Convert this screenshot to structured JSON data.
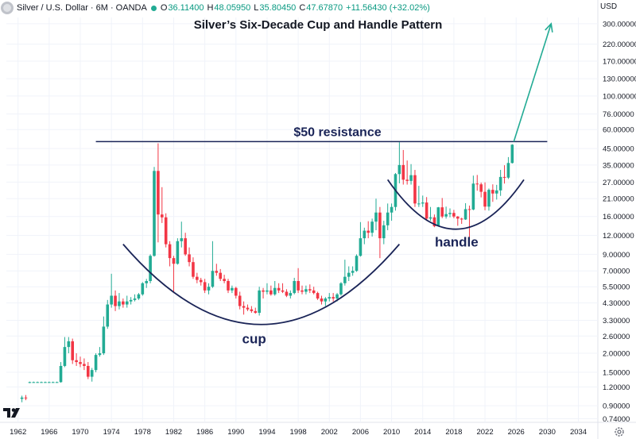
{
  "header": {
    "symbol": "Silver / U.S. Dollar · 6M · OANDA",
    "open_label": "O",
    "open": "36.11400",
    "high_label": "H",
    "high": "48.05950",
    "low_label": "L",
    "low": "35.80450",
    "close_label": "C",
    "close": "47.67870",
    "change": "+11.56430 (+32.02%)",
    "up_color": "#22ab94"
  },
  "currency": "USD",
  "icons": {
    "logo": "tradingview-logo-icon",
    "settings": "gear-icon",
    "status": "green-dot-icon"
  },
  "chart_data": {
    "type": "candlestick",
    "title": "Silver’s Six-Decade Cup and Handle Pattern",
    "scale": "log",
    "x_ticks": [
      "1962",
      "1966",
      "1970",
      "1974",
      "1978",
      "1982",
      "1986",
      "1990",
      "1994",
      "1998",
      "2002",
      "2006",
      "2010",
      "2014",
      "2018",
      "2022",
      "2026",
      "2030",
      "2034"
    ],
    "y_ticks": [
      "300.00000",
      "220.00000",
      "170.00000",
      "130.00000",
      "100.00000",
      "76.00000",
      "60.00000",
      "45.00000",
      "35.00000",
      "27.00000",
      "21.00000",
      "16.00000",
      "12.00000",
      "9.00000",
      "7.00000",
      "5.50000",
      "4.30000",
      "3.30000",
      "2.60000",
      "2.00000",
      "1.50000",
      "1.20000",
      "0.90000",
      "0.74000"
    ],
    "ylim": [
      0.74,
      300
    ],
    "up_color": "#22ab94",
    "down_color": "#f23645",
    "candles": [
      {
        "t": "1962.5",
        "o": 1.0,
        "h": 1.05,
        "l": 0.95,
        "c": 1.02
      },
      {
        "t": "1963.0",
        "o": 1.02,
        "h": 1.06,
        "l": 0.98,
        "c": 1.01
      },
      {
        "t": "1963.5",
        "o": 1.28,
        "h": 1.3,
        "l": 1.27,
        "c": 1.29
      },
      {
        "t": "1964.0",
        "o": 1.29,
        "h": 1.3,
        "l": 1.28,
        "c": 1.29
      },
      {
        "t": "1964.5",
        "o": 1.29,
        "h": 1.3,
        "l": 1.28,
        "c": 1.29
      },
      {
        "t": "1965.0",
        "o": 1.29,
        "h": 1.3,
        "l": 1.28,
        "c": 1.29
      },
      {
        "t": "1965.5",
        "o": 1.29,
        "h": 1.3,
        "l": 1.28,
        "c": 1.29
      },
      {
        "t": "1966.0",
        "o": 1.29,
        "h": 1.3,
        "l": 1.28,
        "c": 1.29
      },
      {
        "t": "1966.5",
        "o": 1.29,
        "h": 1.3,
        "l": 1.28,
        "c": 1.29
      },
      {
        "t": "1967.0",
        "o": 1.29,
        "h": 1.3,
        "l": 1.28,
        "c": 1.29
      },
      {
        "t": "1967.5",
        "o": 1.29,
        "h": 1.75,
        "l": 1.28,
        "c": 1.65
      },
      {
        "t": "1968.0",
        "o": 1.65,
        "h": 2.56,
        "l": 1.62,
        "c": 2.2
      },
      {
        "t": "1968.5",
        "o": 2.2,
        "h": 2.56,
        "l": 2.0,
        "c": 2.4
      },
      {
        "t": "1969.0",
        "o": 2.4,
        "h": 2.5,
        "l": 1.7,
        "c": 1.8
      },
      {
        "t": "1969.5",
        "o": 1.8,
        "h": 2.0,
        "l": 1.65,
        "c": 1.75
      },
      {
        "t": "1970.0",
        "o": 1.75,
        "h": 1.9,
        "l": 1.62,
        "c": 1.7
      },
      {
        "t": "1970.5",
        "o": 1.7,
        "h": 1.85,
        "l": 1.55,
        "c": 1.65
      },
      {
        "t": "1971.0",
        "o": 1.65,
        "h": 1.75,
        "l": 1.35,
        "c": 1.4
      },
      {
        "t": "1971.5",
        "o": 1.4,
        "h": 1.6,
        "l": 1.3,
        "c": 1.55
      },
      {
        "t": "1972.0",
        "o": 1.55,
        "h": 2.0,
        "l": 1.5,
        "c": 1.95
      },
      {
        "t": "1972.5",
        "o": 1.95,
        "h": 2.2,
        "l": 1.9,
        "c": 2.0
      },
      {
        "t": "1973.0",
        "o": 2.0,
        "h": 3.5,
        "l": 1.95,
        "c": 3.0
      },
      {
        "t": "1973.5",
        "o": 3.0,
        "h": 4.5,
        "l": 2.9,
        "c": 4.2
      },
      {
        "t": "1974.0",
        "o": 4.2,
        "h": 6.7,
        "l": 4.0,
        "c": 4.8
      },
      {
        "t": "1974.5",
        "o": 4.8,
        "h": 5.2,
        "l": 3.8,
        "c": 4.1
      },
      {
        "t": "1975.0",
        "o": 4.1,
        "h": 5.0,
        "l": 3.9,
        "c": 4.4
      },
      {
        "t": "1975.5",
        "o": 4.4,
        "h": 4.6,
        "l": 4.0,
        "c": 4.2
      },
      {
        "t": "1976.0",
        "o": 4.2,
        "h": 4.8,
        "l": 4.0,
        "c": 4.4
      },
      {
        "t": "1976.5",
        "o": 4.4,
        "h": 4.7,
        "l": 4.2,
        "c": 4.5
      },
      {
        "t": "1977.0",
        "o": 4.5,
        "h": 4.9,
        "l": 4.4,
        "c": 4.6
      },
      {
        "t": "1977.5",
        "o": 4.6,
        "h": 5.0,
        "l": 4.5,
        "c": 4.9
      },
      {
        "t": "1978.0",
        "o": 4.9,
        "h": 5.9,
        "l": 4.8,
        "c": 5.8
      },
      {
        "t": "1978.5",
        "o": 5.8,
        "h": 6.2,
        "l": 5.4,
        "c": 6.0
      },
      {
        "t": "1979.0",
        "o": 6.0,
        "h": 9.0,
        "l": 5.8,
        "c": 8.8
      },
      {
        "t": "1979.5",
        "o": 8.8,
        "h": 34.0,
        "l": 8.7,
        "c": 32.0
      },
      {
        "t": "1980.0",
        "o": 32.0,
        "h": 48.7,
        "l": 10.8,
        "c": 16.5
      },
      {
        "t": "1980.5",
        "o": 16.5,
        "h": 25.0,
        "l": 14.5,
        "c": 15.8
      },
      {
        "t": "1981.0",
        "o": 15.8,
        "h": 16.8,
        "l": 10.0,
        "c": 10.5
      },
      {
        "t": "1981.5",
        "o": 10.5,
        "h": 11.0,
        "l": 7.5,
        "c": 8.5
      },
      {
        "t": "1982.0",
        "o": 8.5,
        "h": 8.8,
        "l": 5.0,
        "c": 7.8
      },
      {
        "t": "1982.5",
        "o": 7.8,
        "h": 11.5,
        "l": 7.7,
        "c": 11.0
      },
      {
        "t": "1983.0",
        "o": 11.0,
        "h": 14.8,
        "l": 10.0,
        "c": 11.5
      },
      {
        "t": "1983.5",
        "o": 11.5,
        "h": 12.5,
        "l": 8.8,
        "c": 9.0
      },
      {
        "t": "1984.0",
        "o": 9.0,
        "h": 10.0,
        "l": 7.5,
        "c": 8.0
      },
      {
        "t": "1984.5",
        "o": 8.0,
        "h": 8.6,
        "l": 6.2,
        "c": 6.4
      },
      {
        "t": "1985.0",
        "o": 6.4,
        "h": 6.8,
        "l": 5.8,
        "c": 6.1
      },
      {
        "t": "1985.5",
        "o": 6.1,
        "h": 6.3,
        "l": 5.6,
        "c": 5.9
      },
      {
        "t": "1986.0",
        "o": 5.9,
        "h": 6.2,
        "l": 5.0,
        "c": 5.2
      },
      {
        "t": "1986.5",
        "o": 5.2,
        "h": 5.8,
        "l": 4.9,
        "c": 5.5
      },
      {
        "t": "1987.0",
        "o": 5.5,
        "h": 11.0,
        "l": 5.4,
        "c": 7.0
      },
      {
        "t": "1987.5",
        "o": 7.0,
        "h": 7.8,
        "l": 6.5,
        "c": 6.8
      },
      {
        "t": "1988.0",
        "o": 6.8,
        "h": 7.2,
        "l": 6.0,
        "c": 6.2
      },
      {
        "t": "1988.5",
        "o": 6.2,
        "h": 6.6,
        "l": 5.8,
        "c": 6.0
      },
      {
        "t": "1989.0",
        "o": 6.0,
        "h": 6.2,
        "l": 5.0,
        "c": 5.2
      },
      {
        "t": "1989.5",
        "o": 5.2,
        "h": 5.6,
        "l": 5.0,
        "c": 5.4
      },
      {
        "t": "1990.0",
        "o": 5.4,
        "h": 5.5,
        "l": 4.6,
        "c": 4.8
      },
      {
        "t": "1990.5",
        "o": 4.8,
        "h": 5.1,
        "l": 3.9,
        "c": 4.1
      },
      {
        "t": "1991.0",
        "o": 4.1,
        "h": 4.4,
        "l": 3.6,
        "c": 4.0
      },
      {
        "t": "1991.5",
        "o": 4.0,
        "h": 4.2,
        "l": 3.8,
        "c": 3.9
      },
      {
        "t": "1992.0",
        "o": 3.9,
        "h": 4.1,
        "l": 3.7,
        "c": 3.8
      },
      {
        "t": "1992.5",
        "o": 3.8,
        "h": 4.0,
        "l": 3.65,
        "c": 3.7
      },
      {
        "t": "1993.0",
        "o": 3.7,
        "h": 5.5,
        "l": 3.55,
        "c": 5.2
      },
      {
        "t": "1993.5",
        "o": 5.2,
        "h": 5.4,
        "l": 4.6,
        "c": 5.1
      },
      {
        "t": "1994.0",
        "o": 5.1,
        "h": 5.8,
        "l": 4.9,
        "c": 5.2
      },
      {
        "t": "1994.5",
        "o": 5.2,
        "h": 5.6,
        "l": 4.8,
        "c": 4.9
      },
      {
        "t": "1995.0",
        "o": 4.9,
        "h": 6.0,
        "l": 4.8,
        "c": 5.4
      },
      {
        "t": "1995.5",
        "o": 5.4,
        "h": 5.8,
        "l": 5.0,
        "c": 5.2
      },
      {
        "t": "1996.0",
        "o": 5.2,
        "h": 5.8,
        "l": 5.0,
        "c": 5.1
      },
      {
        "t": "1996.5",
        "o": 5.1,
        "h": 5.3,
        "l": 4.7,
        "c": 4.8
      },
      {
        "t": "1997.0",
        "o": 4.8,
        "h": 5.2,
        "l": 4.6,
        "c": 5.0
      },
      {
        "t": "1997.5",
        "o": 5.0,
        "h": 6.3,
        "l": 4.9,
        "c": 6.0
      },
      {
        "t": "1998.0",
        "o": 6.0,
        "h": 7.3,
        "l": 5.0,
        "c": 5.2
      },
      {
        "t": "1998.5",
        "o": 5.2,
        "h": 5.6,
        "l": 4.9,
        "c": 5.1
      },
      {
        "t": "1999.0",
        "o": 5.1,
        "h": 5.6,
        "l": 4.9,
        "c": 5.3
      },
      {
        "t": "1999.5",
        "o": 5.3,
        "h": 5.7,
        "l": 5.0,
        "c": 5.2
      },
      {
        "t": "2000.0",
        "o": 5.2,
        "h": 5.5,
        "l": 4.9,
        "c": 5.0
      },
      {
        "t": "2000.5",
        "o": 5.0,
        "h": 5.1,
        "l": 4.5,
        "c": 4.6
      },
      {
        "t": "2001.0",
        "o": 4.6,
        "h": 4.8,
        "l": 4.2,
        "c": 4.4
      },
      {
        "t": "2001.5",
        "o": 4.4,
        "h": 4.7,
        "l": 4.1,
        "c": 4.6
      },
      {
        "t": "2002.0",
        "o": 4.6,
        "h": 5.0,
        "l": 4.4,
        "c": 4.7
      },
      {
        "t": "2002.5",
        "o": 4.7,
        "h": 5.0,
        "l": 4.4,
        "c": 4.6
      },
      {
        "t": "2003.0",
        "o": 4.6,
        "h": 5.0,
        "l": 4.4,
        "c": 4.9
      },
      {
        "t": "2003.5",
        "o": 4.9,
        "h": 5.9,
        "l": 4.8,
        "c": 5.8
      },
      {
        "t": "2004.0",
        "o": 5.8,
        "h": 8.3,
        "l": 5.6,
        "c": 6.4
      },
      {
        "t": "2004.5",
        "o": 6.4,
        "h": 7.5,
        "l": 6.0,
        "c": 6.8
      },
      {
        "t": "2005.0",
        "o": 6.8,
        "h": 7.5,
        "l": 6.5,
        "c": 7.0
      },
      {
        "t": "2005.5",
        "o": 7.0,
        "h": 9.0,
        "l": 6.9,
        "c": 8.8
      },
      {
        "t": "2006.0",
        "o": 8.8,
        "h": 14.7,
        "l": 8.7,
        "c": 11.5
      },
      {
        "t": "2006.5",
        "o": 11.5,
        "h": 13.5,
        "l": 10.5,
        "c": 12.9
      },
      {
        "t": "2007.0",
        "o": 12.9,
        "h": 14.9,
        "l": 11.5,
        "c": 12.5
      },
      {
        "t": "2007.5",
        "o": 12.5,
        "h": 15.5,
        "l": 11.8,
        "c": 14.8
      },
      {
        "t": "2008.0",
        "o": 14.8,
        "h": 21.0,
        "l": 13.0,
        "c": 17.0
      },
      {
        "t": "2008.5",
        "o": 17.0,
        "h": 18.5,
        "l": 8.5,
        "c": 11.5
      },
      {
        "t": "2009.0",
        "o": 11.5,
        "h": 15.0,
        "l": 10.5,
        "c": 14.0
      },
      {
        "t": "2009.5",
        "o": 14.0,
        "h": 19.5,
        "l": 13.0,
        "c": 17.0
      },
      {
        "t": "2010.0",
        "o": 17.0,
        "h": 19.5,
        "l": 15.0,
        "c": 18.5
      },
      {
        "t": "2010.5",
        "o": 18.5,
        "h": 31.0,
        "l": 17.5,
        "c": 30.5
      },
      {
        "t": "2011.0",
        "o": 30.5,
        "h": 49.5,
        "l": 26.5,
        "c": 35.0
      },
      {
        "t": "2011.5",
        "o": 35.0,
        "h": 44.0,
        "l": 26.0,
        "c": 28.0
      },
      {
        "t": "2012.0",
        "o": 28.0,
        "h": 37.5,
        "l": 26.0,
        "c": 27.5
      },
      {
        "t": "2012.5",
        "o": 27.5,
        "h": 35.5,
        "l": 26.0,
        "c": 30.0
      },
      {
        "t": "2013.0",
        "o": 30.0,
        "h": 32.5,
        "l": 18.5,
        "c": 19.5
      },
      {
        "t": "2013.5",
        "o": 19.5,
        "h": 25.5,
        "l": 18.5,
        "c": 19.5
      },
      {
        "t": "2014.0",
        "o": 19.5,
        "h": 22.0,
        "l": 18.5,
        "c": 19.8
      },
      {
        "t": "2014.5",
        "o": 19.8,
        "h": 21.5,
        "l": 15.0,
        "c": 15.5
      },
      {
        "t": "2015.0",
        "o": 15.5,
        "h": 18.5,
        "l": 15.0,
        "c": 15.8
      },
      {
        "t": "2015.5",
        "o": 15.8,
        "h": 16.5,
        "l": 13.6,
        "c": 13.8
      },
      {
        "t": "2016.0",
        "o": 13.8,
        "h": 18.5,
        "l": 13.7,
        "c": 18.4
      },
      {
        "t": "2016.5",
        "o": 18.4,
        "h": 21.2,
        "l": 15.6,
        "c": 16.0
      },
      {
        "t": "2017.0",
        "o": 16.0,
        "h": 18.6,
        "l": 15.5,
        "c": 16.6
      },
      {
        "t": "2017.5",
        "o": 16.6,
        "h": 18.1,
        "l": 15.8,
        "c": 16.9
      },
      {
        "t": "2018.0",
        "o": 16.9,
        "h": 17.7,
        "l": 15.6,
        "c": 16.0
      },
      {
        "t": "2018.5",
        "o": 16.0,
        "h": 16.1,
        "l": 13.9,
        "c": 15.5
      },
      {
        "t": "2019.0",
        "o": 15.5,
        "h": 15.7,
        "l": 14.3,
        "c": 15.3
      },
      {
        "t": "2019.5",
        "o": 15.3,
        "h": 19.6,
        "l": 15.2,
        "c": 17.9
      },
      {
        "t": "2020.0",
        "o": 17.9,
        "h": 18.9,
        "l": 11.6,
        "c": 17.8
      },
      {
        "t": "2020.5",
        "o": 17.8,
        "h": 29.8,
        "l": 17.6,
        "c": 26.4
      },
      {
        "t": "2021.0",
        "o": 26.4,
        "h": 30.1,
        "l": 23.7,
        "c": 26.1
      },
      {
        "t": "2021.5",
        "o": 26.1,
        "h": 26.8,
        "l": 21.4,
        "c": 23.3
      },
      {
        "t": "2022.0",
        "o": 23.3,
        "h": 26.9,
        "l": 17.6,
        "c": 18.6
      },
      {
        "t": "2022.5",
        "o": 18.6,
        "h": 24.5,
        "l": 17.5,
        "c": 24.0
      },
      {
        "t": "2023.0",
        "o": 24.0,
        "h": 26.1,
        "l": 20.0,
        "c": 22.7
      },
      {
        "t": "2023.5",
        "o": 22.7,
        "h": 25.9,
        "l": 20.7,
        "c": 23.8
      },
      {
        "t": "2024.0",
        "o": 23.8,
        "h": 32.5,
        "l": 21.9,
        "c": 29.2
      },
      {
        "t": "2024.5",
        "o": 29.2,
        "h": 34.9,
        "l": 26.4,
        "c": 28.9
      },
      {
        "t": "2025.0",
        "o": 28.9,
        "h": 39.5,
        "l": 28.3,
        "c": 36.11
      },
      {
        "t": "2025.5",
        "o": 36.11,
        "h": 48.06,
        "l": 35.8,
        "c": 47.68
      }
    ],
    "annotations": [
      {
        "type": "hline",
        "label": "$50 resistance",
        "y": 50,
        "x_from": "1972.0",
        "x_to": "2030.0",
        "color": "#1a2457"
      },
      {
        "type": "arc",
        "label": "cup",
        "x_from": "1975.5",
        "x_to": "2011.0",
        "y_edge": 10.5,
        "y_bottom": 3.1,
        "color": "#1a2457"
      },
      {
        "type": "arc",
        "label": "handle",
        "x_from": "2009.5",
        "x_to": "2027.0",
        "y_edge": 28.0,
        "y_bottom": 13.2,
        "color": "#1a2457"
      },
      {
        "type": "arrow",
        "x_from": "2025.7",
        "y_from": 50,
        "x_to": "2030.5",
        "y_to": 300,
        "color": "#22ab94"
      }
    ]
  }
}
